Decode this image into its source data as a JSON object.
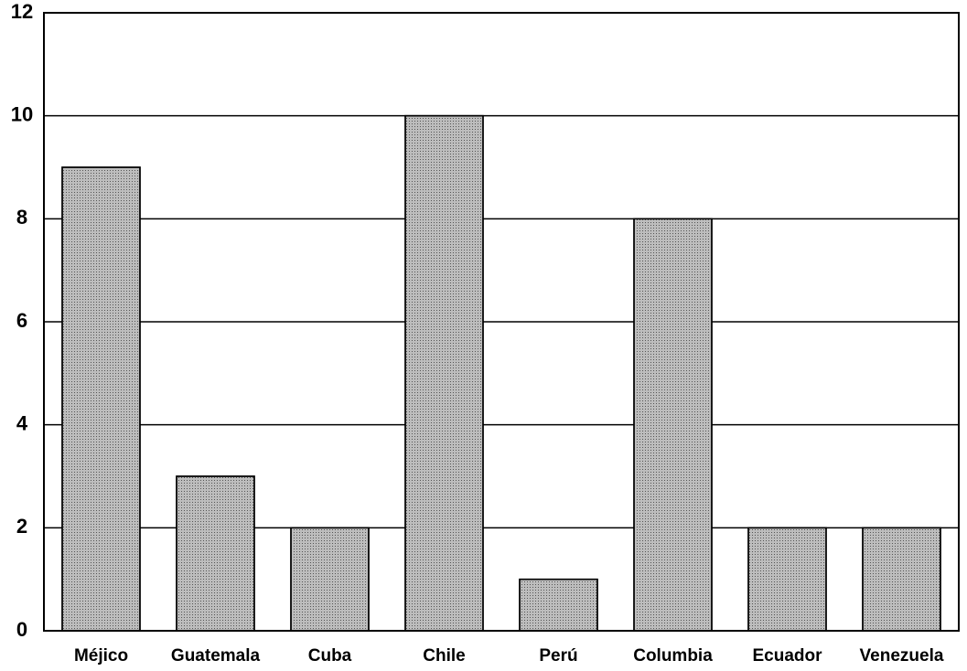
{
  "chart_data": {
    "type": "bar",
    "categories": [
      "Méjico",
      "Guatemala",
      "Cuba",
      "Chile",
      "Perú",
      "Columbia",
      "Ecuador",
      "Venezuela"
    ],
    "values": [
      9,
      3,
      2,
      10,
      1,
      8,
      2,
      2
    ],
    "color": "#bdbdbd",
    "ylim": [
      0,
      12
    ],
    "yticks": [
      0,
      2,
      4,
      6,
      8,
      10,
      12
    ],
    "grid": true
  }
}
